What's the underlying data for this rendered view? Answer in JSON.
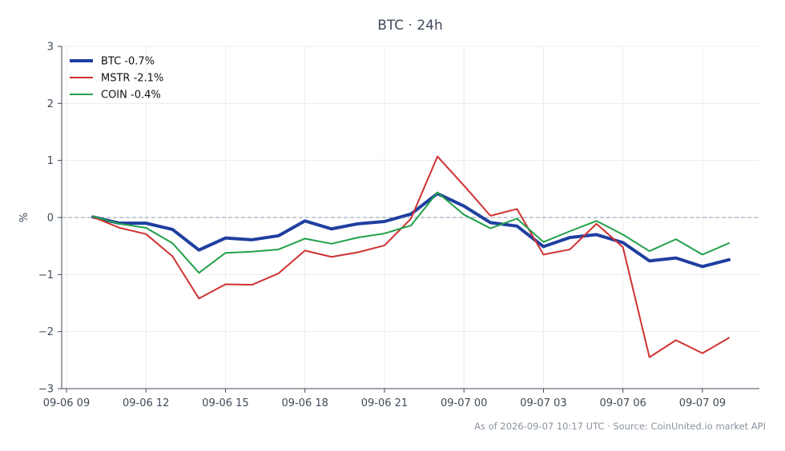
{
  "chart_data": {
    "type": "line",
    "title": "BTC · 24h",
    "ylabel": "%",
    "xlabel": "",
    "ylim": [
      -3,
      3
    ],
    "y_ticks": [
      -3,
      -2,
      -1,
      0,
      1,
      2,
      3
    ],
    "y_tick_labels": [
      "−3",
      "−2",
      "−1",
      "0",
      "1",
      "2",
      "3"
    ],
    "x_ticks": [
      {
        "label": "09-06 09",
        "hours": 0
      },
      {
        "label": "09-06 12",
        "hours": 3
      },
      {
        "label": "09-06 15",
        "hours": 6
      },
      {
        "label": "09-06 18",
        "hours": 9
      },
      {
        "label": "09-06 21",
        "hours": 12
      },
      {
        "label": "09-07 00",
        "hours": 15
      },
      {
        "label": "09-07 03",
        "hours": 18
      },
      {
        "label": "09-07 06",
        "hours": 21
      },
      {
        "label": "09-07 09",
        "hours": 24
      }
    ],
    "x": [
      1,
      2,
      3,
      4,
      5,
      6,
      7,
      8,
      9,
      10,
      11,
      12,
      13,
      14,
      15,
      16,
      17,
      18,
      19,
      20,
      21,
      22,
      23,
      24,
      25
    ],
    "grid": true,
    "legend_position": "top-left",
    "baseline": 0,
    "series": [
      {
        "name": "BTC -0.7%",
        "color": "#1f3fa0",
        "width": 4,
        "values": [
          0.01,
          -0.1,
          -0.1,
          -0.21,
          -0.57,
          -0.36,
          -0.39,
          -0.32,
          -0.06,
          -0.2,
          -0.11,
          -0.07,
          0.06,
          0.42,
          0.2,
          -0.09,
          -0.15,
          -0.51,
          -0.35,
          -0.3,
          -0.44,
          -0.76,
          -0.71,
          -0.86,
          -0.74
        ]
      },
      {
        "name": "MSTR -2.1%",
        "color": "#d03232",
        "width": 2,
        "values": [
          0.01,
          -0.18,
          -0.29,
          -0.68,
          -1.42,
          -1.17,
          -1.18,
          -0.98,
          -0.58,
          -0.69,
          -0.61,
          -0.49,
          -0.02,
          1.07,
          0.56,
          0.03,
          0.15,
          -0.65,
          -0.56,
          -0.11,
          -0.52,
          -2.45,
          -2.15,
          -2.38,
          -2.11
        ]
      },
      {
        "name": "COIN -0.4%",
        "color": "#22a04a",
        "width": 2,
        "values": [
          0.02,
          -0.11,
          -0.18,
          -0.45,
          -0.97,
          -0.62,
          -0.6,
          -0.56,
          -0.37,
          -0.46,
          -0.35,
          -0.28,
          -0.14,
          0.44,
          0.05,
          -0.19,
          -0.02,
          -0.43,
          -0.24,
          -0.06,
          -0.3,
          -0.59,
          -0.38,
          -0.65,
          -0.45
        ]
      }
    ]
  },
  "footer": {
    "text": "As of 2026-09-07 10:17 UTC · Source: CoinUnited.io market API"
  },
  "colors": {
    "axis": "#3f4a5a",
    "grid": "#ececec",
    "baseline": "#8f9bb3"
  }
}
